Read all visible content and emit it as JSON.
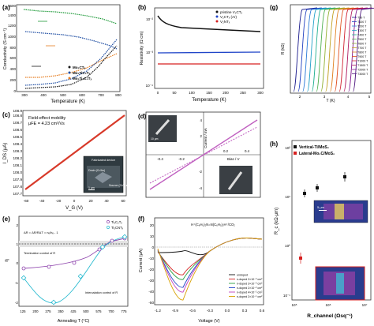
{
  "panels": {
    "a": {
      "letter": "(a)",
      "ylabel": "Conductivity (S cm⁻¹)",
      "xlabel": "Temperature (K)",
      "yticks": [
        "0",
        "200",
        "400",
        "600",
        "800",
        "1000",
        "1200",
        "1400",
        "1600"
      ],
      "xticks": [
        "300",
        "400",
        "500",
        "600",
        "700",
        "800"
      ],
      "legend": [
        "Mo₂CTₓ",
        "Mo₂TiC₂Tₓ",
        "Mo₂Ti₂C₃Tₓ"
      ]
    },
    "b": {
      "letter": "(b)",
      "ylabel": "Resistivity (Ω cm)",
      "xlabel": "Temperature (K)",
      "xticks": [
        "0",
        "50",
        "100",
        "150",
        "200",
        "250",
        "300"
      ],
      "yticks": [
        "10⁻⁴",
        "10⁻³",
        "10⁻²"
      ],
      "legend": [
        "pristine V₂CTₓ",
        "V₂CTₓ (Ar)",
        "V₂NTₓ"
      ]
    },
    "c": {
      "letter": "(c)",
      "ylabel": "I_DS (μA)",
      "xlabel": "V_G (V)",
      "yticks": [
        "107.7",
        "107.8",
        "107.9",
        "108.0",
        "108.1",
        "108.2",
        "108.3",
        "108.4",
        "108.5",
        "108.6",
        "108.7",
        "108.8",
        "108.9"
      ],
      "xticks": [
        "-60",
        "-40",
        "-20",
        "0",
        "20",
        "40",
        "60"
      ],
      "annotation_line1": "Field-effect mobility",
      "annotation_line2": "μFE = 4.23 cm²/Vs",
      "inset_title": "Fabricated device",
      "inset_drain": "Drain (Cr/Au)",
      "inset_source": "Source (Cr/Au)",
      "inset_scale": "1 μm"
    },
    "d": {
      "letter": "(d)",
      "ylabel": "Current / mA",
      "xlabel": "Bias / V",
      "xticks": [
        "-0.4",
        "-0.2",
        "0.2",
        "0.4"
      ],
      "yticks": [
        "-4",
        "-2",
        "2",
        "4"
      ],
      "scale_bar": "10 μm"
    },
    "e": {
      "letter": "(e)",
      "ylabel": "η",
      "xlabel": "Annealing T (°C)",
      "xticks": [
        "125",
        "200",
        "275",
        "350",
        "425",
        "500",
        "575",
        "700",
        "775"
      ],
      "yticks": [
        "-2",
        "-1",
        "0",
        "1",
        "2"
      ],
      "legend": [
        "Ti₃C₂Tₓ",
        "Ti₃CNTₓ"
      ],
      "eq": "ΔR = ΔR/RΔT = nₑ/hₑ - 1",
      "label_top": "Termination control of R",
      "label_bottom": "Intercalation control of R"
    },
    "f": {
      "letter": "(f)",
      "ylabel": "Current (μA)",
      "xlabel": "Voltage (V)",
      "xticks": [
        "-1.2",
        "-0.9",
        "-0.6",
        "-0.3",
        "0.0",
        "0.3",
        "0.6"
      ],
      "yticks": [
        "-50",
        "-40",
        "-30",
        "-20",
        "-10",
        "0",
        "10",
        "20"
      ],
      "title": "H⁺(C₆H₅)₂N=N(C₆H₅)₂H⁺/CO₂",
      "legend": [
        "undoped",
        "n-doped 2×10⁻³ cm²",
        "n-doped 3×10⁻³ cm²",
        "n-doped 2×10⁻² cm²",
        "n-doped 4×10⁻² cm²",
        "n-doped 2×10⁻¹ cm²"
      ]
    },
    "g": {
      "letter": "(g)",
      "ylabel": "R (kΩ)",
      "xlabel": "T (K)",
      "xticks": [
        "2",
        "3",
        "4",
        "5"
      ],
      "legend": [
        "T50 T",
        "T100 T",
        "T200 T",
        "T300 T",
        "T400 T",
        "T500 T",
        "T600 T",
        "T700 T",
        "T800 T",
        "T900 T",
        "T1000 T",
        "T1500 T",
        "T2000 T",
        "T3000 T"
      ]
    },
    "h": {
      "letter": "(h)",
      "ylabel": "R_c (kΩ·μm)",
      "xlabel": "R_channel (Ωsq⁻¹)",
      "xticks": [
        "10⁵",
        "10⁶",
        "10⁷"
      ],
      "yticks": [
        "10⁻¹",
        "10⁰",
        "10¹",
        "10²"
      ],
      "legend": [
        "Vertical-Ti/MoS₂",
        "Lateral-Mo₂C/MoS₂"
      ],
      "inset_scale": "5 μm"
    }
  },
  "colors": {
    "a_black": "#1a1a1a",
    "a_blue": "#1f4ea3",
    "a_orange": "#e67e22",
    "a_green": "#1f9a3a",
    "b_pristine": "#111111",
    "b_ar": "#2045c8",
    "b_v2n": "#d62020",
    "c_line": "#d83a2a",
    "d_line": "#c060c0",
    "e_purple": "#8e44ad",
    "e_cyan": "#2bbbd0",
    "h_black": "#111111",
    "h_red": "#d62020"
  }
}
